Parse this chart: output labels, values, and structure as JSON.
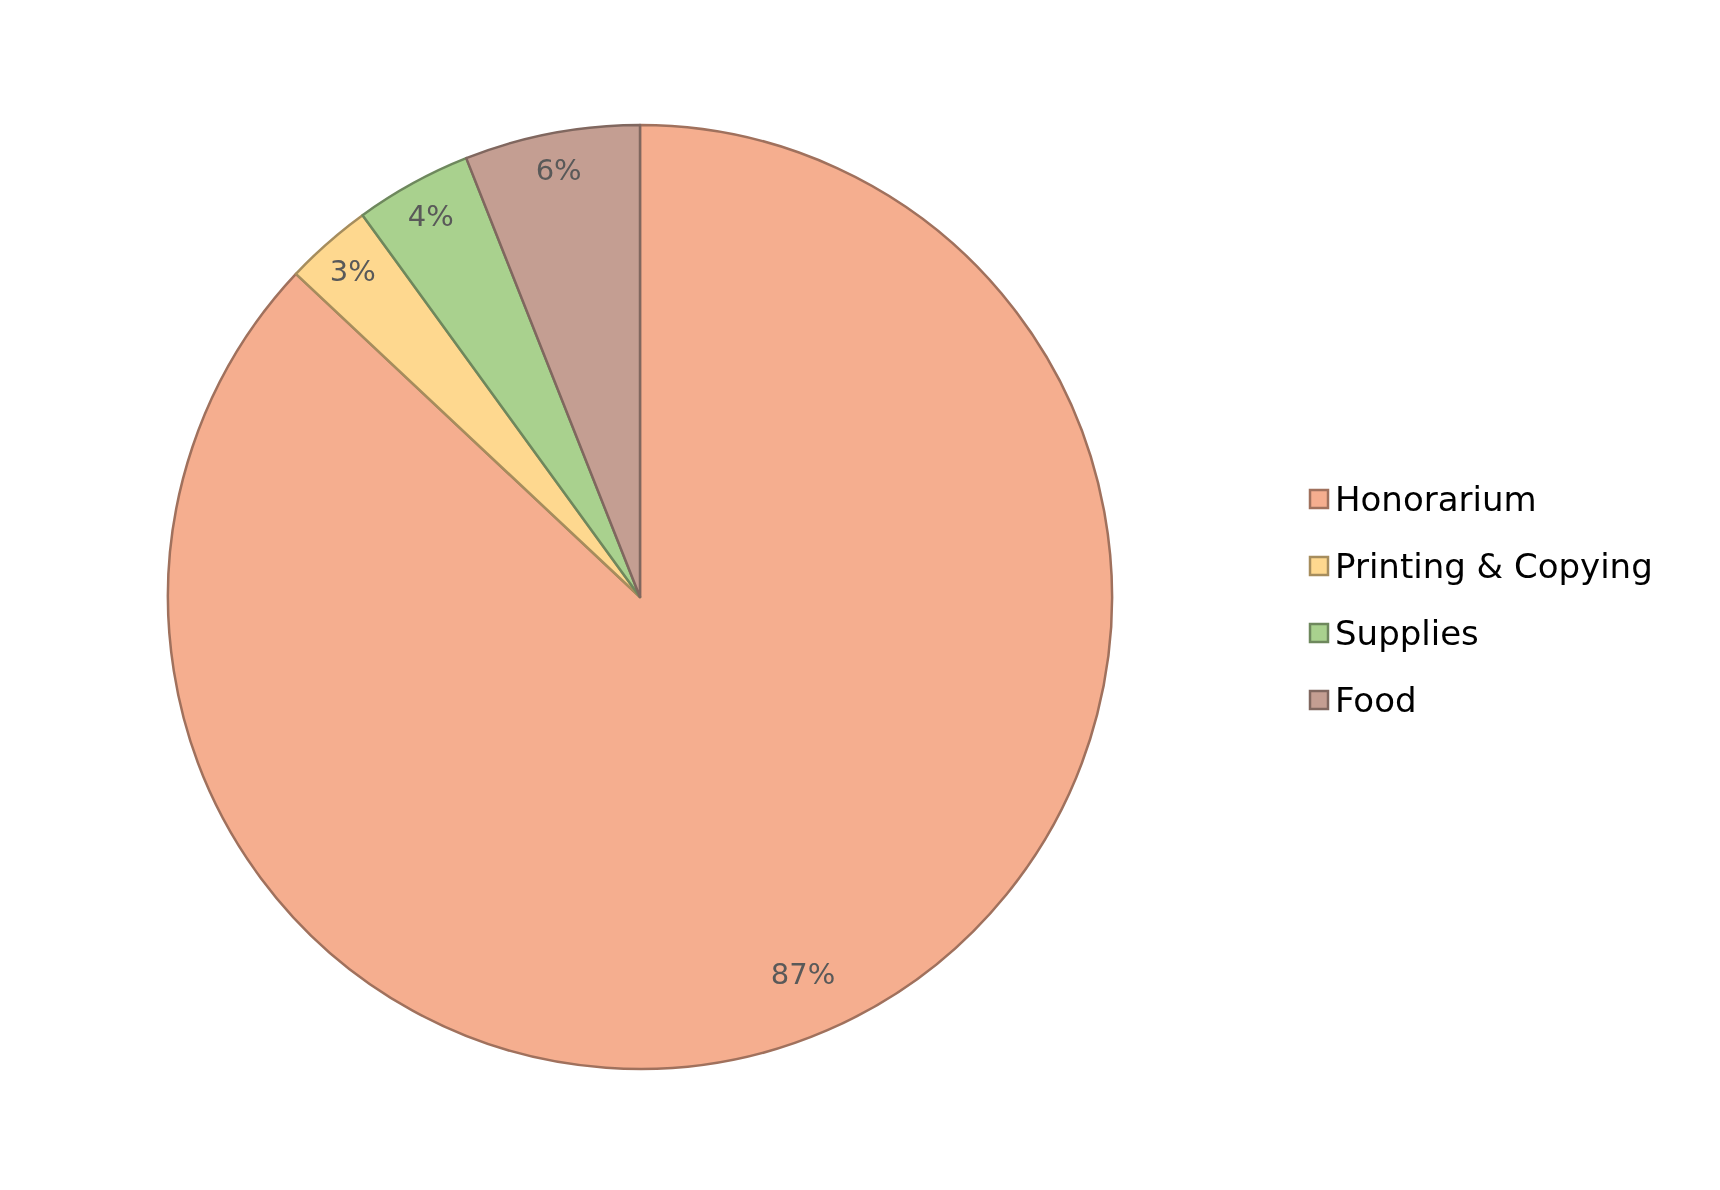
{
  "chart_data": {
    "type": "pie",
    "categories": [
      "Honorarium",
      "Printing & Copying",
      "Supplies",
      "Food"
    ],
    "values": [
      87,
      3,
      4,
      6
    ],
    "colors": [
      "#f5ae8f",
      "#fed88f",
      "#a9d18e",
      "#c49e92"
    ],
    "value_labels": [
      "87%",
      "3%",
      "4%",
      "6%"
    ],
    "legend": "right"
  }
}
